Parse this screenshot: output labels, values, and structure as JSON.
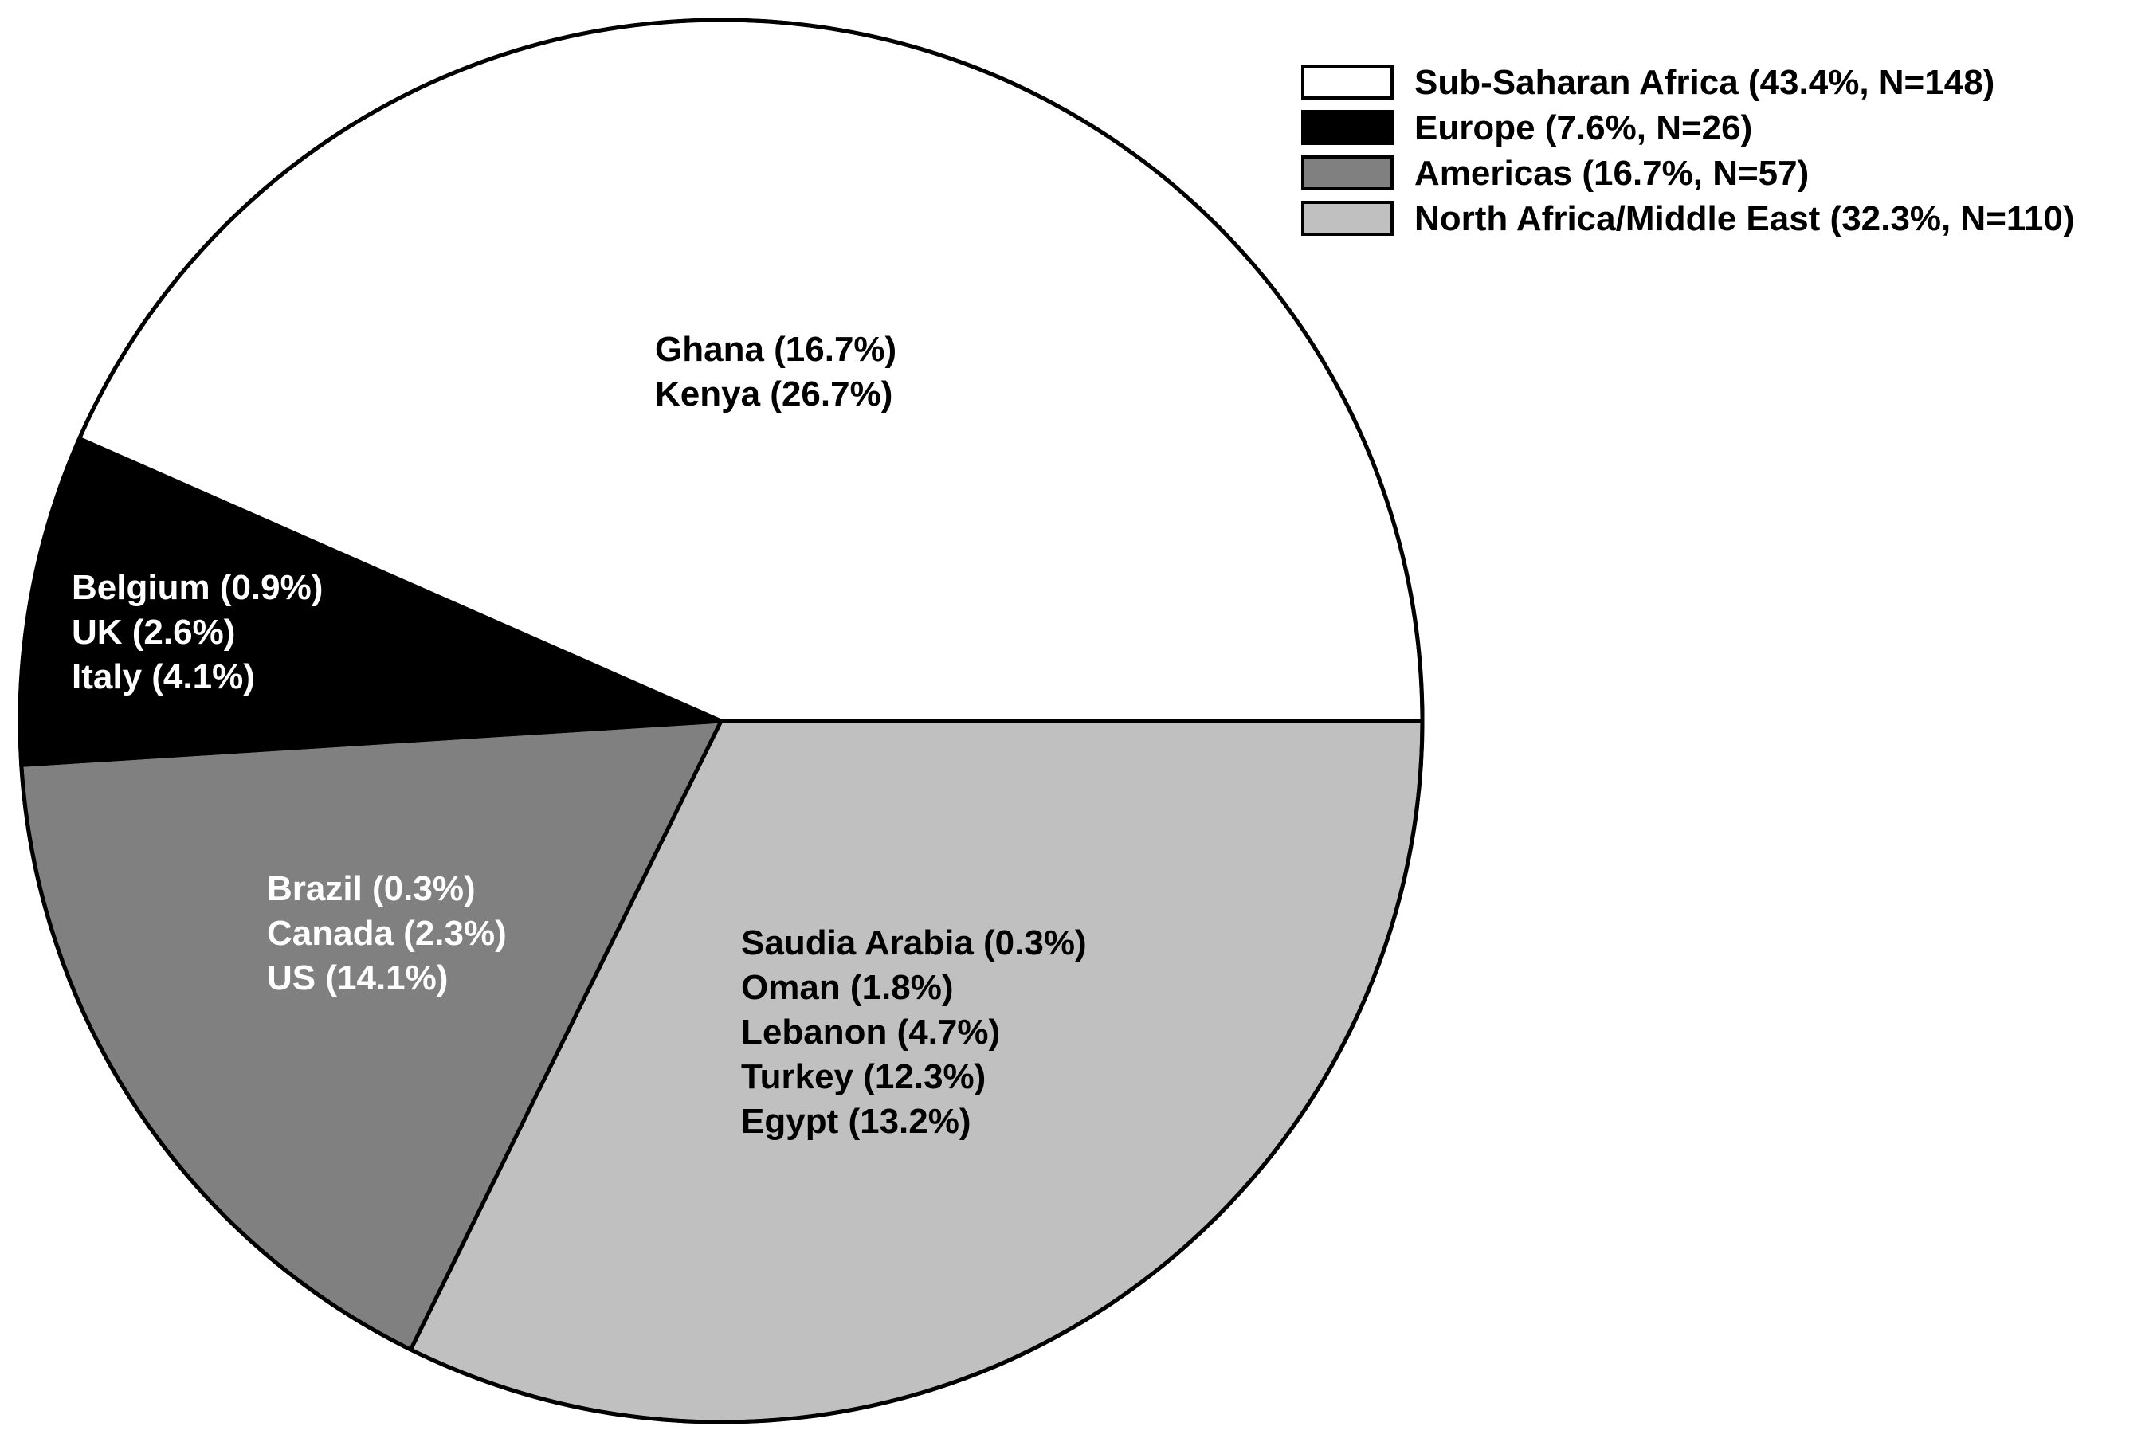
{
  "chart_data": {
    "type": "pie",
    "start": "3 o'clock",
    "direction": "clockwise",
    "legend_position": "top-right",
    "slices": [
      {
        "name": "North Africa/Middle East",
        "legend": "North Africa/Middle East (32.3%, N=110)",
        "percent": 32.3,
        "n": 110,
        "color": "#c0c0c0",
        "text_color": "#000000",
        "countries": [
          "Saudia Arabia (0.3%)",
          "Oman (1.8%)",
          "Lebanon (4.7%)",
          "Turkey (12.3%)",
          "Egypt (13.2%)"
        ]
      },
      {
        "name": "Americas",
        "legend": "Americas (16.7%, N=57)",
        "percent": 16.7,
        "n": 57,
        "color": "#808080",
        "text_color": "#ffffff",
        "countries": [
          "Brazil (0.3%)",
          "Canada (2.3%)",
          "US (14.1%)"
        ]
      },
      {
        "name": "Europe",
        "legend": "Europe (7.6%, N=26)",
        "percent": 7.6,
        "n": 26,
        "color": "#000000",
        "text_color": "#ffffff",
        "countries": [
          "Belgium (0.9%)",
          "UK (2.6%)",
          "Italy (4.1%)"
        ]
      },
      {
        "name": "Sub-Saharan Africa",
        "legend": "Sub-Saharan Africa (43.4%, N=148)",
        "percent": 43.4,
        "n": 148,
        "color": "#ffffff",
        "text_color": "#000000",
        "countries": [
          "Ghana (16.7%)",
          "Kenya (26.7%)"
        ]
      }
    ],
    "legend_order": [
      "Sub-Saharan Africa",
      "Europe",
      "Americas",
      "North Africa/Middle East"
    ]
  }
}
